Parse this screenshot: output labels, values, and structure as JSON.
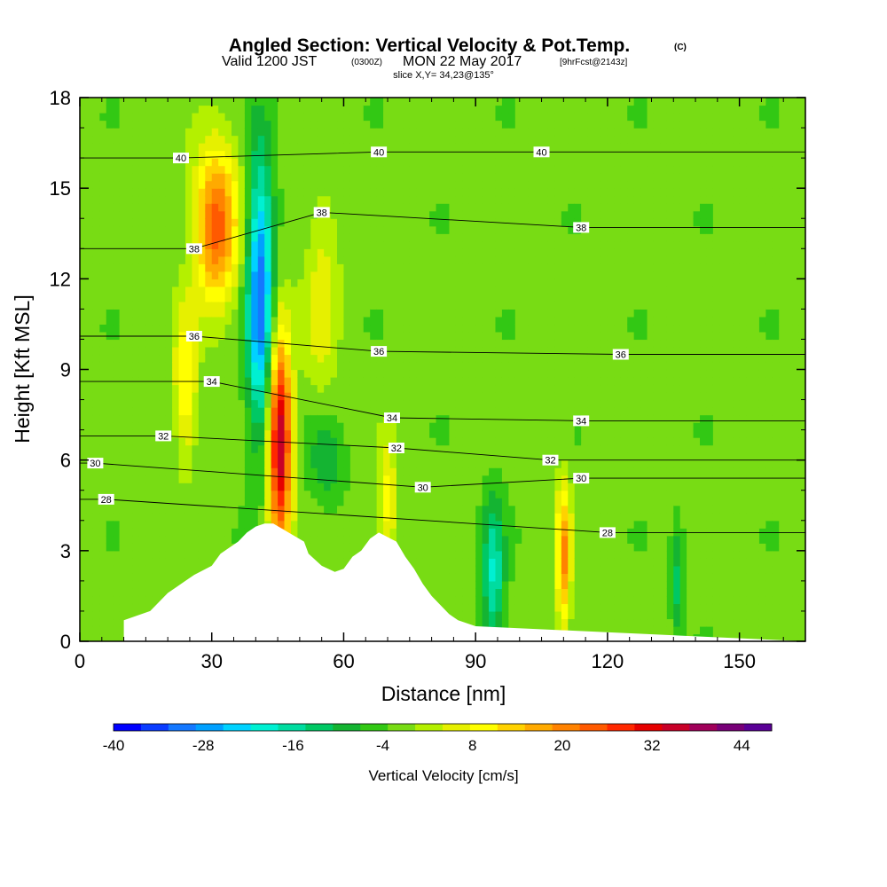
{
  "title": {
    "main": "Angled Section: Vertical Velocity & Pot.Temp.",
    "main_suffix": "(C)",
    "valid_prefix": "Valid 1200 JST",
    "valid_utc": "(0300Z)",
    "valid_date": "MON 22 May 2017",
    "valid_fcst": "[9hrFcst@2143z]",
    "slice": "slice X,Y= 34,23@135°"
  },
  "chart_data": {
    "type": "heatmap",
    "xlabel": "Distance [nm]",
    "ylabel": "Height [Kft MSL]",
    "xlim": [
      0,
      165
    ],
    "ylim": [
      0,
      18
    ],
    "x_ticks": [
      "0",
      "30",
      "60",
      "90",
      "120",
      "150"
    ],
    "y_ticks": [
      "0",
      "3",
      "6",
      "9",
      "12",
      "15",
      "18"
    ],
    "x_tick_values": [
      0,
      30,
      60,
      90,
      120,
      150
    ],
    "y_tick_values": [
      0,
      3,
      6,
      9,
      12,
      15,
      18
    ],
    "background_value": -2,
    "features": [
      {
        "kind": "updraft",
        "center": [
          45.5,
          6.6
        ],
        "radius": [
          2.6,
          3.6
        ],
        "value": 40
      },
      {
        "kind": "updraft",
        "center": [
          31,
          13.8
        ],
        "radius": [
          5,
          2.6
        ],
        "value": 26
      },
      {
        "kind": "updraft",
        "center": [
          24,
          8.5
        ],
        "radius": [
          2.5,
          2.5
        ],
        "value": 14
      },
      {
        "kind": "updraft",
        "center": [
          55,
          11.5
        ],
        "radius": [
          4,
          3.5
        ],
        "value": 8
      },
      {
        "kind": "downdraft",
        "center": [
          41,
          11.5
        ],
        "radius": [
          3,
          4.5
        ],
        "value": -30
      },
      {
        "kind": "downdraft",
        "center": [
          94,
          2.2
        ],
        "radius": [
          2.5,
          2.5
        ],
        "value": -16
      },
      {
        "kind": "updraft",
        "center": [
          110,
          2.8
        ],
        "radius": [
          1.6,
          2.4
        ],
        "value": 22
      },
      {
        "kind": "downdraft",
        "center": [
          136,
          2
        ],
        "radius": [
          1.5,
          1.8
        ],
        "value": -10
      },
      {
        "kind": "updraft",
        "center": [
          70,
          4.5
        ],
        "radius": [
          2,
          2
        ],
        "value": 12
      },
      {
        "kind": "downdraft",
        "center": [
          56,
          6
        ],
        "radius": [
          4,
          1.5
        ],
        "value": -8
      }
    ],
    "terrain": {
      "x": [
        0,
        10,
        10,
        16,
        18,
        20,
        22,
        24,
        26,
        30,
        32,
        34,
        36,
        38,
        40,
        42,
        44,
        51,
        52,
        55,
        58,
        60,
        62,
        64,
        66,
        68,
        72,
        74,
        76,
        78,
        80,
        82,
        84,
        86,
        90,
        165
      ],
      "height": [
        0,
        0,
        0.7,
        1.0,
        1.3,
        1.6,
        1.8,
        2.0,
        2.2,
        2.5,
        2.9,
        3.1,
        3.3,
        3.6,
        3.8,
        3.9,
        3.9,
        3.3,
        2.9,
        2.5,
        2.3,
        2.4,
        2.8,
        3.0,
        3.4,
        3.6,
        3.3,
        2.8,
        2.4,
        1.9,
        1.5,
        1.2,
        0.9,
        0.7,
        0.5,
        0
      ]
    },
    "theta_contour_labels": [
      {
        "text": "40",
        "x": 23,
        "y": 16.0
      },
      {
        "text": "40",
        "x": 68,
        "y": 16.2
      },
      {
        "text": "40",
        "x": 105,
        "y": 16.2
      },
      {
        "text": "38",
        "x": 26,
        "y": 13.0
      },
      {
        "text": "38",
        "x": 55,
        "y": 14.2
      },
      {
        "text": "38",
        "x": 114,
        "y": 13.7
      },
      {
        "text": "36",
        "x": 26,
        "y": 10.1
      },
      {
        "text": "36",
        "x": 68,
        "y": 9.6
      },
      {
        "text": "36",
        "x": 123,
        "y": 9.5
      },
      {
        "text": "34",
        "x": 30,
        "y": 8.6
      },
      {
        "text": "34",
        "x": 71,
        "y": 7.4
      },
      {
        "text": "34",
        "x": 114,
        "y": 7.3
      },
      {
        "text": "32",
        "x": 19,
        "y": 6.8
      },
      {
        "text": "32",
        "x": 72,
        "y": 6.4
      },
      {
        "text": "32",
        "x": 107,
        "y": 6.0
      },
      {
        "text": "30",
        "x": 3.5,
        "y": 5.9
      },
      {
        "text": "30",
        "x": 78,
        "y": 5.1
      },
      {
        "text": "30",
        "x": 114,
        "y": 5.4
      },
      {
        "text": "28",
        "x": 6,
        "y": 4.7
      },
      {
        "text": "28",
        "x": 120,
        "y": 3.6
      }
    ]
  },
  "colorbar": {
    "label": "Vertical Velocity [cm/s]",
    "ticks": [
      "-40",
      "-28",
      "-16",
      "-4",
      "8",
      "20",
      "32",
      "44"
    ],
    "tick_values": [
      -40,
      -28,
      -16,
      -4,
      8,
      20,
      32,
      44
    ],
    "min": -40,
    "max": 48,
    "colors": [
      "#0000ff",
      "#0a3cff",
      "#1478ff",
      "#00a0ff",
      "#00d2ff",
      "#00f0d2",
      "#00dca0",
      "#00c864",
      "#14b432",
      "#32c814",
      "#78dc14",
      "#b4f000",
      "#e6f000",
      "#ffff00",
      "#ffd200",
      "#ffaa00",
      "#ff8200",
      "#ff5a00",
      "#ff2800",
      "#e60000",
      "#c80028",
      "#a0005a",
      "#780078",
      "#5a0096"
    ]
  }
}
